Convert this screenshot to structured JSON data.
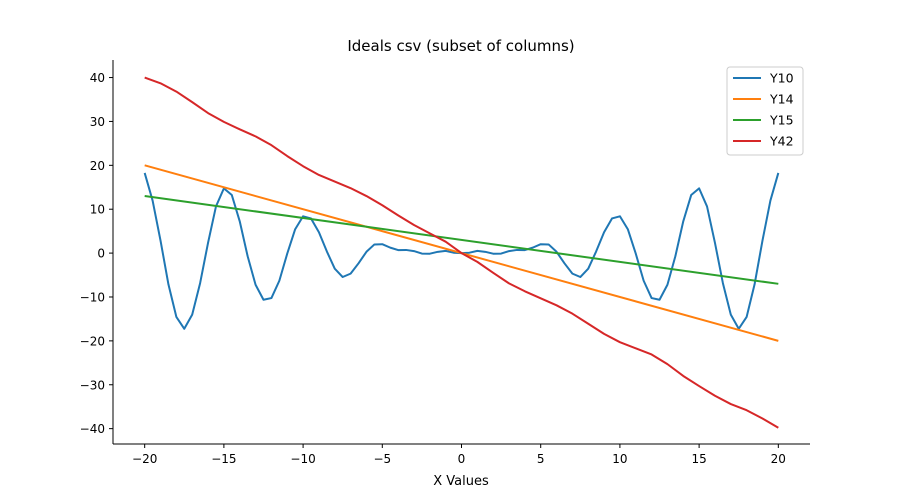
{
  "chart_data": {
    "type": "line",
    "title": "Ideals csv (subset of columns)",
    "xlabel": "X Values",
    "ylabel": "",
    "xlim": [
      -22,
      22
    ],
    "ylim": [
      -43.5,
      44
    ],
    "xticks": [
      -20,
      -15,
      -10,
      -5,
      0,
      5,
      10,
      15,
      20
    ],
    "yticks": [
      -40,
      -30,
      -20,
      -10,
      0,
      10,
      20,
      30,
      40
    ],
    "grid": false,
    "legend_position": "top-right",
    "series": [
      {
        "name": "Y10",
        "color": "#1f77b4",
        "x": [
          -20,
          -19.5,
          -19,
          -18.5,
          -18,
          -17.5,
          -17,
          -16.5,
          -16,
          -15.5,
          -15,
          -14.5,
          -14,
          -13.5,
          -13,
          -12.5,
          -12,
          -11.5,
          -11,
          -10.5,
          -10,
          -9.5,
          -9,
          -8.5,
          -8,
          -7.5,
          -7,
          -6.5,
          -6,
          -5.5,
          -5,
          -4.5,
          -4,
          -3.5,
          -3,
          -2.5,
          -2,
          -1.5,
          -1,
          -0.5,
          0,
          0.5,
          1,
          1.5,
          2,
          2.5,
          3,
          3.5,
          4,
          4.5,
          5,
          5.5,
          6,
          6.5,
          7,
          7.5,
          8,
          8.5,
          9,
          9.5,
          10,
          10.5,
          11,
          11.5,
          12,
          12.5,
          13,
          13.5,
          14,
          14.5,
          15,
          15.5,
          16,
          16.5,
          17,
          17.5,
          18,
          18.5,
          19,
          19.5,
          20
        ],
        "y": [
          18.26,
          11.97,
          2.85,
          -7.13,
          -14.54,
          -17.24,
          -14.02,
          -6.83,
          2.35,
          10.63,
          14.75,
          13.23,
          7.25,
          -0.72,
          -7.22,
          -10.63,
          -10.24,
          -6.3,
          -0.11,
          5.44,
          8.39,
          7.89,
          4.76,
          0.38,
          -3.56,
          -5.45,
          -4.68,
          -2.33,
          0.3,
          1.97,
          2.02,
          1.25,
          0.69,
          0.72,
          0.46,
          -0.11,
          -0.14,
          0.29,
          0.51,
          0.09,
          0.0,
          0.09,
          0.51,
          0.29,
          -0.14,
          -0.11,
          0.46,
          0.72,
          0.69,
          1.25,
          2.02,
          1.97,
          0.3,
          -2.33,
          -4.68,
          -5.45,
          -3.56,
          0.38,
          4.76,
          7.89,
          8.39,
          5.44,
          -0.11,
          -6.3,
          -10.24,
          -10.63,
          -7.22,
          -0.72,
          7.25,
          13.23,
          14.75,
          10.63,
          2.35,
          -6.83,
          -14.02,
          -17.24,
          -14.54,
          -7.13,
          2.85,
          11.97,
          18.26
        ]
      },
      {
        "name": "Y14",
        "color": "#ff7f0e",
        "x": [
          -20,
          20
        ],
        "y": [
          20,
          -20
        ]
      },
      {
        "name": "Y15",
        "color": "#2ca02c",
        "x": [
          -20,
          20
        ],
        "y": [
          13,
          -7
        ]
      },
      {
        "name": "Y42",
        "color": "#d62728",
        "x": [
          -20,
          -19,
          -18,
          -17,
          -16,
          -15,
          -14,
          -13,
          -12,
          -11,
          -10,
          -9,
          -8,
          -7,
          -6,
          -5,
          -4,
          -3,
          -2,
          -1,
          0,
          1,
          2,
          3,
          4,
          5,
          6,
          7,
          8,
          9,
          10,
          11,
          12,
          13,
          14,
          15,
          16,
          17,
          18,
          19,
          20
        ],
        "y": [
          40.0,
          38.7,
          36.8,
          34.4,
          31.9,
          29.9,
          28.2,
          26.6,
          24.6,
          22.1,
          19.8,
          17.8,
          16.3,
          14.8,
          13.0,
          10.9,
          8.6,
          6.4,
          4.5,
          2.6,
          0.0,
          -2.0,
          -4.5,
          -6.9,
          -8.7,
          -10.3,
          -11.9,
          -13.8,
          -16.1,
          -18.4,
          -20.3,
          -21.7,
          -23.1,
          -25.3,
          -28.0,
          -30.3,
          -32.5,
          -34.4,
          -35.8,
          -37.7,
          -39.8
        ]
      }
    ]
  }
}
